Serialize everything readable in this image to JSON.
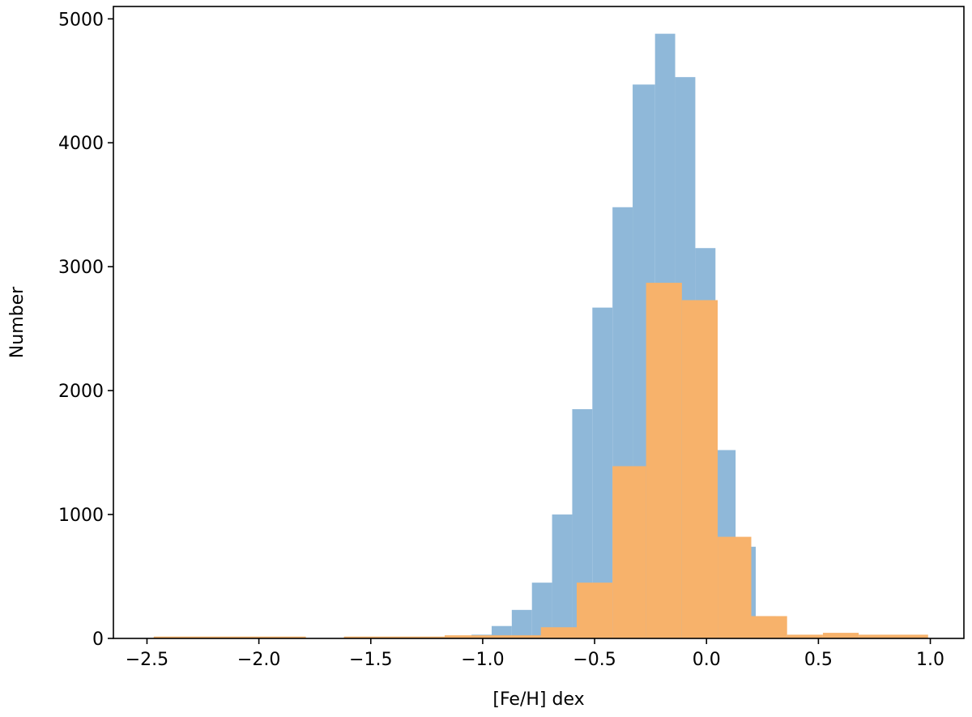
{
  "chart_data": {
    "type": "bar",
    "title": "",
    "xlabel": "[Fe/H] dex",
    "ylabel": "Number",
    "xlim": [
      -2.65,
      1.15
    ],
    "ylim": [
      0,
      5100
    ],
    "xticks": [
      -2.5,
      -2.0,
      -1.5,
      -1.0,
      -0.5,
      0.0,
      0.5,
      1.0
    ],
    "xtick_labels": [
      "−2.5",
      "−2.0",
      "−1.5",
      "−1.0",
      "−0.5",
      "0.0",
      "0.5",
      "1.0"
    ],
    "yticks": [
      0,
      1000,
      2000,
      3000,
      4000,
      5000
    ],
    "ytick_labels": [
      "0",
      "1000",
      "2000",
      "3000",
      "4000",
      "5000"
    ],
    "grid": false,
    "series": [
      {
        "color": "#8fb8d9",
        "bins": [
          {
            "x0": -1.15,
            "x1": -1.05,
            "value": 5
          },
          {
            "x0": -1.05,
            "x1": -0.96,
            "value": 30
          },
          {
            "x0": -0.96,
            "x1": -0.87,
            "value": 100
          },
          {
            "x0": -0.87,
            "x1": -0.78,
            "value": 230
          },
          {
            "x0": -0.78,
            "x1": -0.69,
            "value": 450
          },
          {
            "x0": -0.69,
            "x1": -0.6,
            "value": 1000
          },
          {
            "x0": -0.6,
            "x1": -0.51,
            "value": 1850
          },
          {
            "x0": -0.51,
            "x1": -0.42,
            "value": 2670
          },
          {
            "x0": -0.42,
            "x1": -0.33,
            "value": 3480
          },
          {
            "x0": -0.33,
            "x1": -0.23,
            "value": 4470
          },
          {
            "x0": -0.23,
            "x1": -0.14,
            "value": 4880
          },
          {
            "x0": -0.14,
            "x1": -0.05,
            "value": 4530
          },
          {
            "x0": -0.05,
            "x1": 0.04,
            "value": 3150
          },
          {
            "x0": 0.04,
            "x1": 0.13,
            "value": 1520
          },
          {
            "x0": 0.13,
            "x1": 0.22,
            "value": 740
          },
          {
            "x0": 0.22,
            "x1": 0.31,
            "value": 180
          },
          {
            "x0": 0.31,
            "x1": 0.4,
            "value": 20
          }
        ]
      },
      {
        "color": "#f7b26b",
        "bins": [
          {
            "x0": -2.47,
            "x1": -1.79,
            "value": 15
          },
          {
            "x0": -1.62,
            "x1": -1.17,
            "value": 15
          },
          {
            "x0": -1.17,
            "x1": -0.74,
            "value": 25
          },
          {
            "x0": -0.74,
            "x1": -0.58,
            "value": 90
          },
          {
            "x0": -0.58,
            "x1": -0.42,
            "value": 450
          },
          {
            "x0": -0.42,
            "x1": -0.27,
            "value": 1390
          },
          {
            "x0": -0.27,
            "x1": -0.11,
            "value": 2870
          },
          {
            "x0": -0.11,
            "x1": 0.05,
            "value": 2730
          },
          {
            "x0": 0.05,
            "x1": 0.2,
            "value": 820
          },
          {
            "x0": 0.2,
            "x1": 0.36,
            "value": 180
          },
          {
            "x0": 0.36,
            "x1": 0.52,
            "value": 30
          },
          {
            "x0": 0.52,
            "x1": 0.68,
            "value": 45
          },
          {
            "x0": 0.68,
            "x1": 0.99,
            "value": 30
          }
        ]
      }
    ]
  }
}
